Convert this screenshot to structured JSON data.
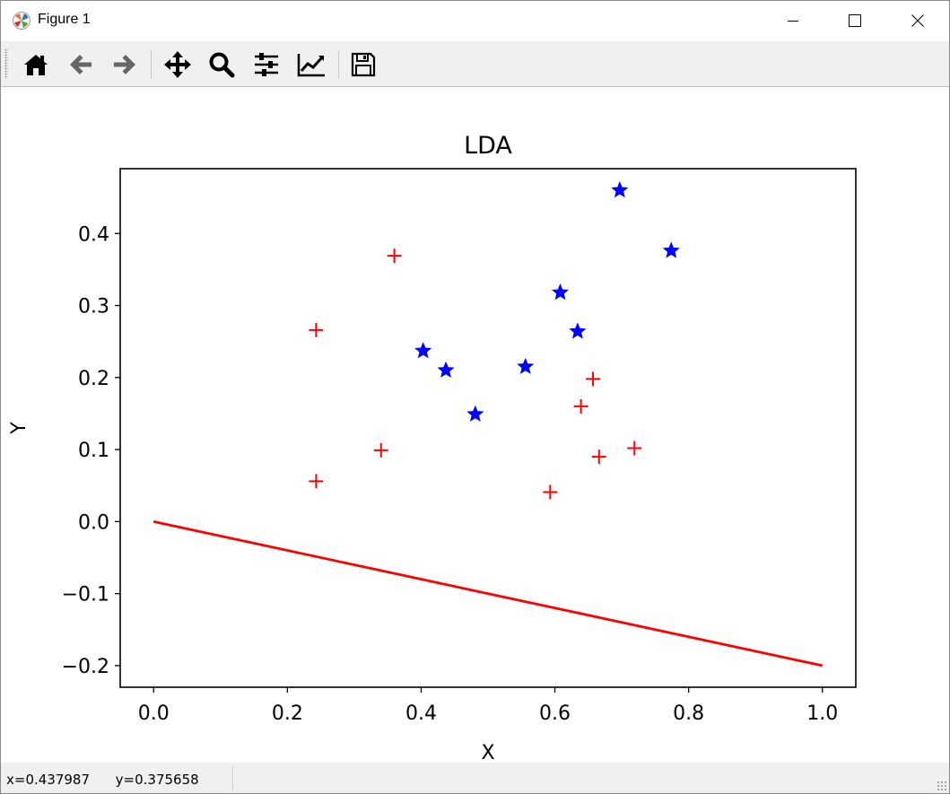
{
  "window": {
    "title": "Figure 1",
    "app_icon": "matplotlib-icon",
    "controls": [
      "minimize-icon",
      "maximize-icon",
      "close-icon"
    ]
  },
  "toolbar": {
    "buttons": [
      {
        "name": "home-button",
        "icon": "home-icon"
      },
      {
        "name": "back-button",
        "icon": "arrow-left-icon"
      },
      {
        "name": "forward-button",
        "icon": "arrow-right-icon"
      },
      {
        "name": "pan-button",
        "icon": "move-icon"
      },
      {
        "name": "zoom-button",
        "icon": "magnifier-icon"
      },
      {
        "name": "subplots-button",
        "icon": "sliders-icon"
      },
      {
        "name": "edit-axes-button",
        "icon": "line-chart-icon"
      },
      {
        "name": "save-button",
        "icon": "floppy-disk-icon"
      }
    ]
  },
  "status": {
    "x_readout": "x=0.437987",
    "y_readout": "y=0.375658"
  },
  "chart_data": {
    "type": "scatter",
    "title": "LDA",
    "xlabel": "X",
    "ylabel": "Y",
    "xlim": [
      -0.05,
      1.05
    ],
    "ylim": [
      -0.23,
      0.49
    ],
    "xticks": [
      0.0,
      0.2,
      0.4,
      0.6,
      0.8,
      1.0
    ],
    "xtick_labels": [
      "0.0",
      "0.2",
      "0.4",
      "0.6",
      "0.8",
      "1.0"
    ],
    "yticks": [
      -0.2,
      -0.1,
      0.0,
      0.1,
      0.2,
      0.3,
      0.4
    ],
    "ytick_labels": [
      "−0.2",
      "−0.1",
      "0.0",
      "0.1",
      "0.2",
      "0.3",
      "0.4"
    ],
    "grid": false,
    "series": [
      {
        "marker": "plus",
        "color": "#ff0000",
        "points": [
          [
            0.243,
            0.266
          ],
          [
            0.36,
            0.369
          ],
          [
            0.243,
            0.056
          ],
          [
            0.34,
            0.099
          ],
          [
            0.593,
            0.041
          ],
          [
            0.639,
            0.16
          ],
          [
            0.657,
            0.198
          ],
          [
            0.666,
            0.09
          ],
          [
            0.719,
            0.102
          ]
        ]
      },
      {
        "marker": "star",
        "color": "#0000ff",
        "points": [
          [
            0.403,
            0.237
          ],
          [
            0.437,
            0.21
          ],
          [
            0.481,
            0.149
          ],
          [
            0.556,
            0.215
          ],
          [
            0.608,
            0.318
          ],
          [
            0.634,
            0.264
          ],
          [
            0.697,
            0.46
          ],
          [
            0.774,
            0.376
          ]
        ]
      }
    ],
    "line": {
      "color": "#ff0000",
      "points": [
        [
          0.0,
          0.0
        ],
        [
          1.0,
          -0.2
        ]
      ]
    }
  }
}
